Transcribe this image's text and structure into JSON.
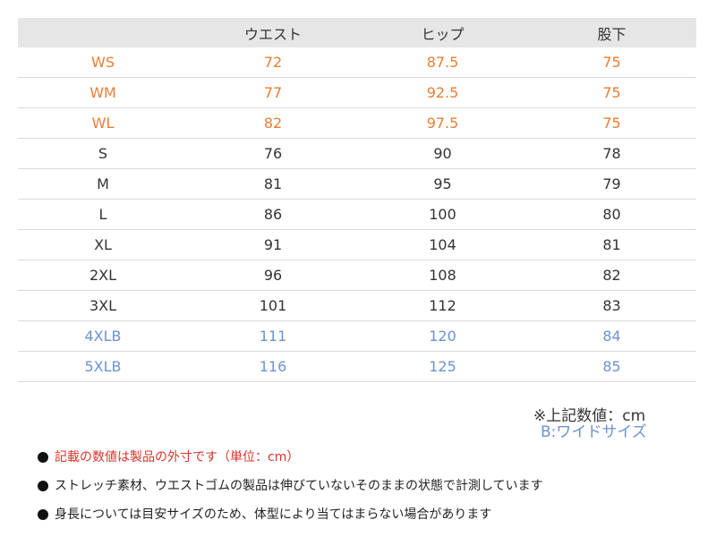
{
  "table": {
    "headers": [
      "",
      "ウエスト",
      "ヒップ",
      "股下"
    ],
    "rows": [
      {
        "size": "WS",
        "waist": "72",
        "hip": "87.5",
        "inseam": "75"
      },
      {
        "size": "WM",
        "waist": "77",
        "hip": "92.5",
        "inseam": "75"
      },
      {
        "size": "WL",
        "waist": "82",
        "hip": "97.5",
        "inseam": "75"
      },
      {
        "size": "S",
        "waist": "76",
        "hip": "90",
        "inseam": "78"
      },
      {
        "size": "M",
        "waist": "81",
        "hip": "95",
        "inseam": "79"
      },
      {
        "size": "L",
        "waist": "86",
        "hip": "100",
        "inseam": "80"
      },
      {
        "size": "XL",
        "waist": "91",
        "hip": "104",
        "inseam": "81"
      },
      {
        "size": "2XL",
        "waist": "96",
        "hip": "108",
        "inseam": "82"
      },
      {
        "size": "3XL",
        "waist": "101",
        "hip": "112",
        "inseam": "83"
      },
      {
        "size": "4XLB",
        "waist": "111",
        "hip": "120",
        "inseam": "84"
      },
      {
        "size": "5XLB",
        "waist": "116",
        "hip": "125",
        "inseam": "85"
      }
    ]
  },
  "unit_note": "※上記数値：cm",
  "wide_note": "B:ワイドサイズ",
  "notes": [
    "記載の数値は製品の外寸です（単位：cm）",
    "ストレッチ素材、ウエストゴムの製品は伸びていないそのままの状態で計測しています",
    "身長については目安サイズのため、体型により当てはまらない場合があります"
  ],
  "colors": {
    "women_rows": "#ed7d31",
    "wide_rows": "#6b93d0",
    "note_highlight": "#d9332b",
    "header_bg": "#e6e6e6"
  }
}
